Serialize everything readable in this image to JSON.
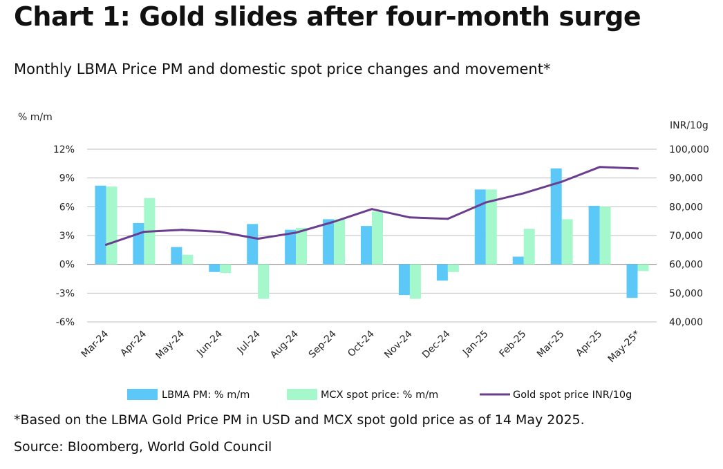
{
  "title": "Chart 1: Gold slides after four-month surge",
  "subtitle": "Monthly LBMA Price PM and domestic spot price changes and movement*",
  "footnote": "*Based on the LBMA Gold Price PM in USD and MCX spot gold price as of 14 May 2025.",
  "source": "Source: Bloomberg, World Gold Council",
  "chart_data": {
    "type": "bar",
    "categories": [
      "Mar-24",
      "Apr-24",
      "May-24",
      "Jun-24",
      "Jul-24",
      "Aug-24",
      "Sep-24",
      "Oct-24",
      "Nov-24",
      "Dec-24",
      "Jan-25",
      "Feb-25",
      "Mar-25",
      "Apr-25",
      "May-25*"
    ],
    "left_axis": {
      "label": "% m/m",
      "ylim": [
        -6,
        12
      ],
      "ticks": [
        12,
        9,
        6,
        3,
        0,
        -3,
        -6
      ],
      "tick_labels": [
        "12%",
        "9%",
        "6%",
        "3%",
        "0%",
        "-3%",
        "-6%"
      ]
    },
    "right_axis": {
      "label": "INR/10g",
      "ylim": [
        40000,
        100000
      ],
      "ticks": [
        100000,
        90000,
        80000,
        70000,
        60000,
        50000,
        40000
      ],
      "tick_labels": [
        "100,000",
        "90,000",
        "80,000",
        "70,000",
        "60,000",
        "50,000",
        "40,000"
      ]
    },
    "series": [
      {
        "name": "LBMA PM: % m/m",
        "type": "bar",
        "axis": "left",
        "color": "#5bc8f7",
        "values": [
          8.2,
          4.3,
          1.8,
          -0.8,
          4.2,
          3.6,
          4.7,
          4.0,
          -3.2,
          -1.7,
          7.8,
          0.8,
          10.0,
          6.1,
          -3.5
        ]
      },
      {
        "name": "MCX spot price: % m/m",
        "type": "bar",
        "axis": "left",
        "color": "#a4f8cb",
        "values": [
          8.1,
          6.9,
          1.0,
          -0.9,
          -3.6,
          3.8,
          4.7,
          5.5,
          -3.6,
          -0.8,
          7.8,
          3.7,
          4.7,
          6.0,
          -0.7
        ]
      },
      {
        "name": "Gold spot price INR/10g",
        "type": "line",
        "axis": "right",
        "color": "#6a3d8f",
        "values": [
          66800,
          71300,
          72000,
          71300,
          68900,
          71000,
          74800,
          79200,
          76300,
          75800,
          81500,
          84700,
          88700,
          93800,
          93300
        ]
      }
    ],
    "grid": true,
    "legend_position": "bottom"
  }
}
